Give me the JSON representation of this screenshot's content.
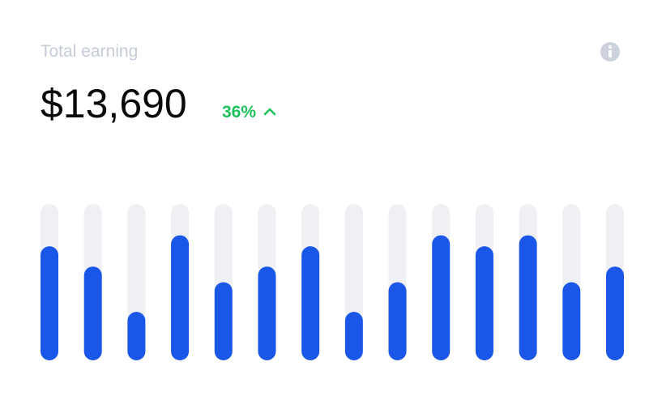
{
  "chart_data": {
    "type": "bar",
    "title": "Total earning",
    "amount": "$13,690",
    "change": "36%",
    "values": [
      73,
      60,
      31,
      80,
      50,
      60,
      73,
      31,
      50,
      80,
      73,
      80,
      50,
      60
    ],
    "ylim": [
      0,
      100
    ],
    "color": "#1a56e8",
    "track_color": "#eff0f4"
  }
}
